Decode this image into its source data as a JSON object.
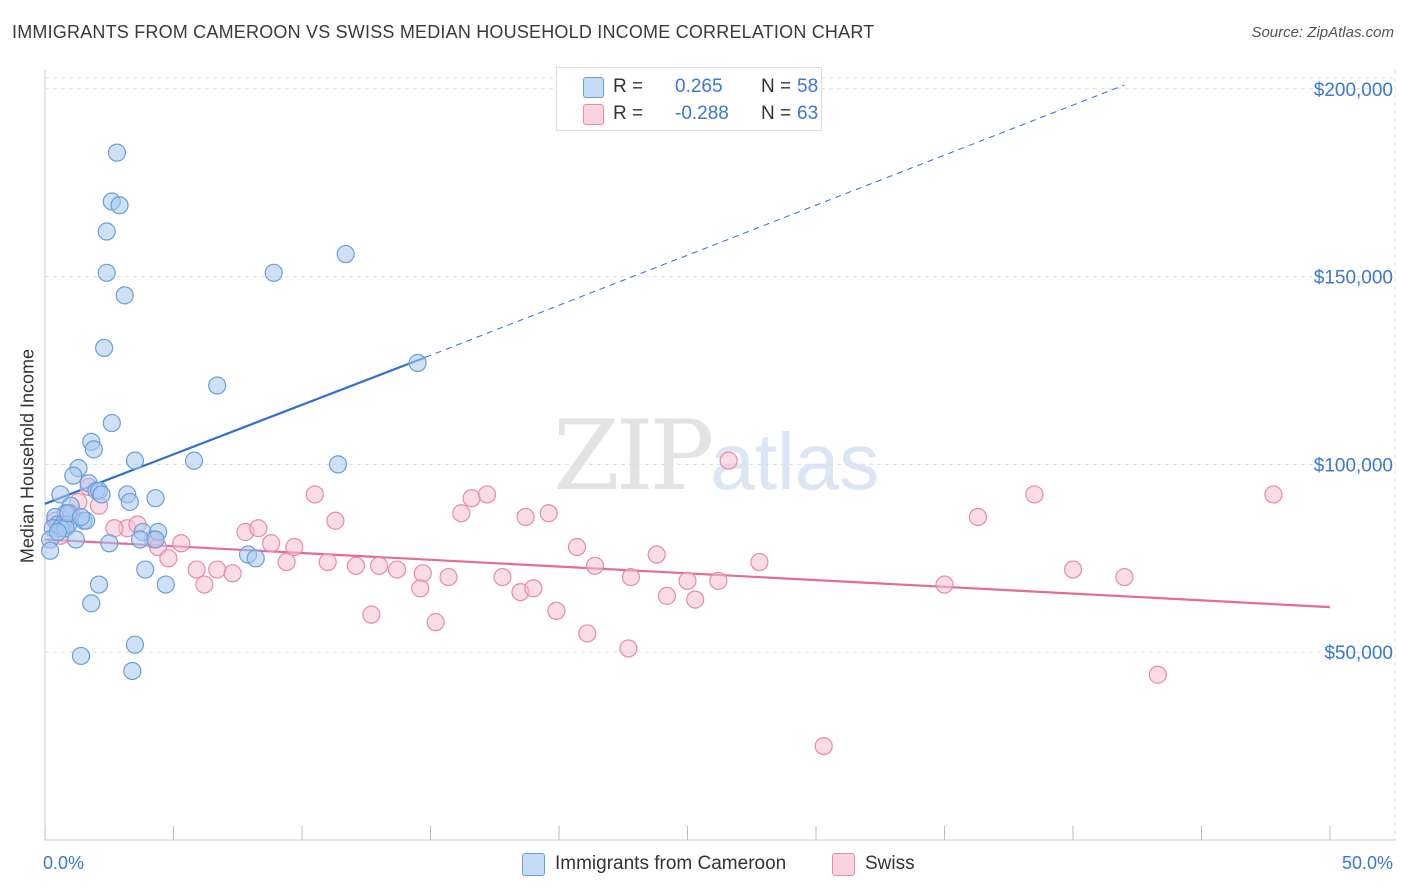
{
  "header": {
    "title": "IMMIGRANTS FROM CAMEROON VS SWISS MEDIAN HOUSEHOLD INCOME CORRELATION CHART",
    "source": "Source: ZipAtlas.com"
  },
  "watermark": {
    "zip": "ZIP",
    "atlas": "atlas"
  },
  "legend": {
    "rows": [
      {
        "r_label": "R =",
        "r_value": "0.265",
        "n_label": "N =",
        "n_value": "58"
      },
      {
        "r_label": "R =",
        "r_value": "-0.288",
        "n_label": "N =",
        "n_value": "63"
      }
    ]
  },
  "bottom_legend": {
    "items": [
      {
        "label": "Immigrants from Cameroon"
      },
      {
        "label": "Swiss"
      }
    ]
  },
  "colors": {
    "blue_fill": "#a8c8f0",
    "blue_stroke": "#6a9fd8",
    "blue_line": "#2f6fcf",
    "pink_fill": "#f6c0d2",
    "pink_stroke": "#e98aaa",
    "pink_line": "#e36b98",
    "tick_text": "#3b78d0",
    "grid": "#dddddd"
  },
  "chart_data": {
    "type": "scatter",
    "title": "IMMIGRANTS FROM CAMEROON VS SWISS MEDIAN HOUSEHOLD INCOME CORRELATION CHART",
    "xlabel": "",
    "ylabel": "Median Household Income",
    "xlim": [
      0,
      50
    ],
    "ylim": [
      0,
      205000
    ],
    "x_tick_labels": [
      "0.0%",
      "50.0%"
    ],
    "y_ticks": [
      50000,
      100000,
      150000,
      200000
    ],
    "y_tick_labels": [
      "$50,000",
      "$100,000",
      "$150,000",
      "$200,000"
    ],
    "grid": true,
    "legend_position": "top-center",
    "series": [
      {
        "name": "Immigrants from Cameroon",
        "r": 0.265,
        "n": 58,
        "trend": {
          "x0": 0.0,
          "y0": 89500,
          "x1": 14.8,
          "y1": 128500,
          "dashed_to_x": 42.0,
          "dashed_to_y": 201000
        },
        "points": [
          [
            2.8,
            183000
          ],
          [
            2.6,
            170000
          ],
          [
            2.9,
            169000
          ],
          [
            2.4,
            162000
          ],
          [
            11.7,
            156000
          ],
          [
            2.4,
            151000
          ],
          [
            8.9,
            151000
          ],
          [
            3.1,
            145000
          ],
          [
            2.3,
            131000
          ],
          [
            14.5,
            127000
          ],
          [
            6.7,
            121000
          ],
          [
            2.6,
            111000
          ],
          [
            1.8,
            106000
          ],
          [
            1.9,
            104000
          ],
          [
            3.5,
            101000
          ],
          [
            5.8,
            101000
          ],
          [
            11.4,
            100000
          ],
          [
            1.3,
            99000
          ],
          [
            1.1,
            97000
          ],
          [
            1.7,
            95000
          ],
          [
            2.0,
            93000
          ],
          [
            2.1,
            93000
          ],
          [
            0.6,
            92000
          ],
          [
            3.2,
            92000
          ],
          [
            4.3,
            91000
          ],
          [
            3.3,
            90000
          ],
          [
            1.0,
            89000
          ],
          [
            0.8,
            87000
          ],
          [
            0.4,
            86000
          ],
          [
            1.5,
            85000
          ],
          [
            0.5,
            84000
          ],
          [
            0.7,
            84000
          ],
          [
            0.9,
            84000
          ],
          [
            1.6,
            85000
          ],
          [
            0.3,
            83000
          ],
          [
            0.6,
            83000
          ],
          [
            0.8,
            83000
          ],
          [
            3.8,
            82000
          ],
          [
            4.4,
            82000
          ],
          [
            3.7,
            80000
          ],
          [
            4.3,
            80000
          ],
          [
            0.2,
            80000
          ],
          [
            1.2,
            80000
          ],
          [
            2.5,
            79000
          ],
          [
            0.2,
            77000
          ],
          [
            7.9,
            76000
          ],
          [
            8.2,
            75000
          ],
          [
            3.9,
            72000
          ],
          [
            4.7,
            68000
          ],
          [
            2.1,
            68000
          ],
          [
            1.8,
            63000
          ],
          [
            3.5,
            52000
          ],
          [
            1.4,
            49000
          ],
          [
            3.4,
            45000
          ],
          [
            0.9,
            87000
          ],
          [
            0.5,
            82000
          ],
          [
            1.4,
            86000
          ],
          [
            2.2,
            92000
          ]
        ]
      },
      {
        "name": "Swiss",
        "r": -0.288,
        "n": 63,
        "trend": {
          "x0": 0.0,
          "y0": 80000,
          "x1": 50.0,
          "y1": 62000
        },
        "points": [
          [
            1.7,
            94000
          ],
          [
            1.3,
            90000
          ],
          [
            2.1,
            89000
          ],
          [
            1.0,
            87000
          ],
          [
            0.4,
            85000
          ],
          [
            0.8,
            84000
          ],
          [
            3.2,
            83000
          ],
          [
            3.6,
            84000
          ],
          [
            2.7,
            83000
          ],
          [
            0.6,
            81000
          ],
          [
            7.8,
            82000
          ],
          [
            8.3,
            83000
          ],
          [
            4.2,
            80000
          ],
          [
            5.3,
            79000
          ],
          [
            4.4,
            78000
          ],
          [
            8.8,
            79000
          ],
          [
            9.7,
            78000
          ],
          [
            10.5,
            92000
          ],
          [
            11.3,
            85000
          ],
          [
            11.0,
            74000
          ],
          [
            9.4,
            74000
          ],
          [
            12.1,
            73000
          ],
          [
            13.0,
            73000
          ],
          [
            13.7,
            72000
          ],
          [
            6.7,
            72000
          ],
          [
            7.3,
            71000
          ],
          [
            14.7,
            71000
          ],
          [
            15.7,
            70000
          ],
          [
            16.6,
            91000
          ],
          [
            17.2,
            92000
          ],
          [
            16.2,
            87000
          ],
          [
            18.7,
            86000
          ],
          [
            19.6,
            87000
          ],
          [
            20.7,
            78000
          ],
          [
            21.4,
            73000
          ],
          [
            22.8,
            70000
          ],
          [
            23.8,
            76000
          ],
          [
            25.0,
            69000
          ],
          [
            26.2,
            69000
          ],
          [
            26.6,
            101000
          ],
          [
            35.0,
            68000
          ],
          [
            36.3,
            86000
          ],
          [
            38.5,
            92000
          ],
          [
            40.0,
            72000
          ],
          [
            42.0,
            70000
          ],
          [
            47.8,
            92000
          ],
          [
            5.9,
            72000
          ],
          [
            6.2,
            68000
          ],
          [
            4.8,
            75000
          ],
          [
            12.7,
            60000
          ],
          [
            14.6,
            67000
          ],
          [
            15.2,
            58000
          ],
          [
            17.8,
            70000
          ],
          [
            18.5,
            66000
          ],
          [
            19.0,
            67000
          ],
          [
            19.9,
            61000
          ],
          [
            21.1,
            55000
          ],
          [
            22.7,
            51000
          ],
          [
            24.2,
            65000
          ],
          [
            25.3,
            64000
          ],
          [
            27.8,
            74000
          ],
          [
            43.3,
            44000
          ],
          [
            30.3,
            25000
          ]
        ]
      }
    ]
  }
}
